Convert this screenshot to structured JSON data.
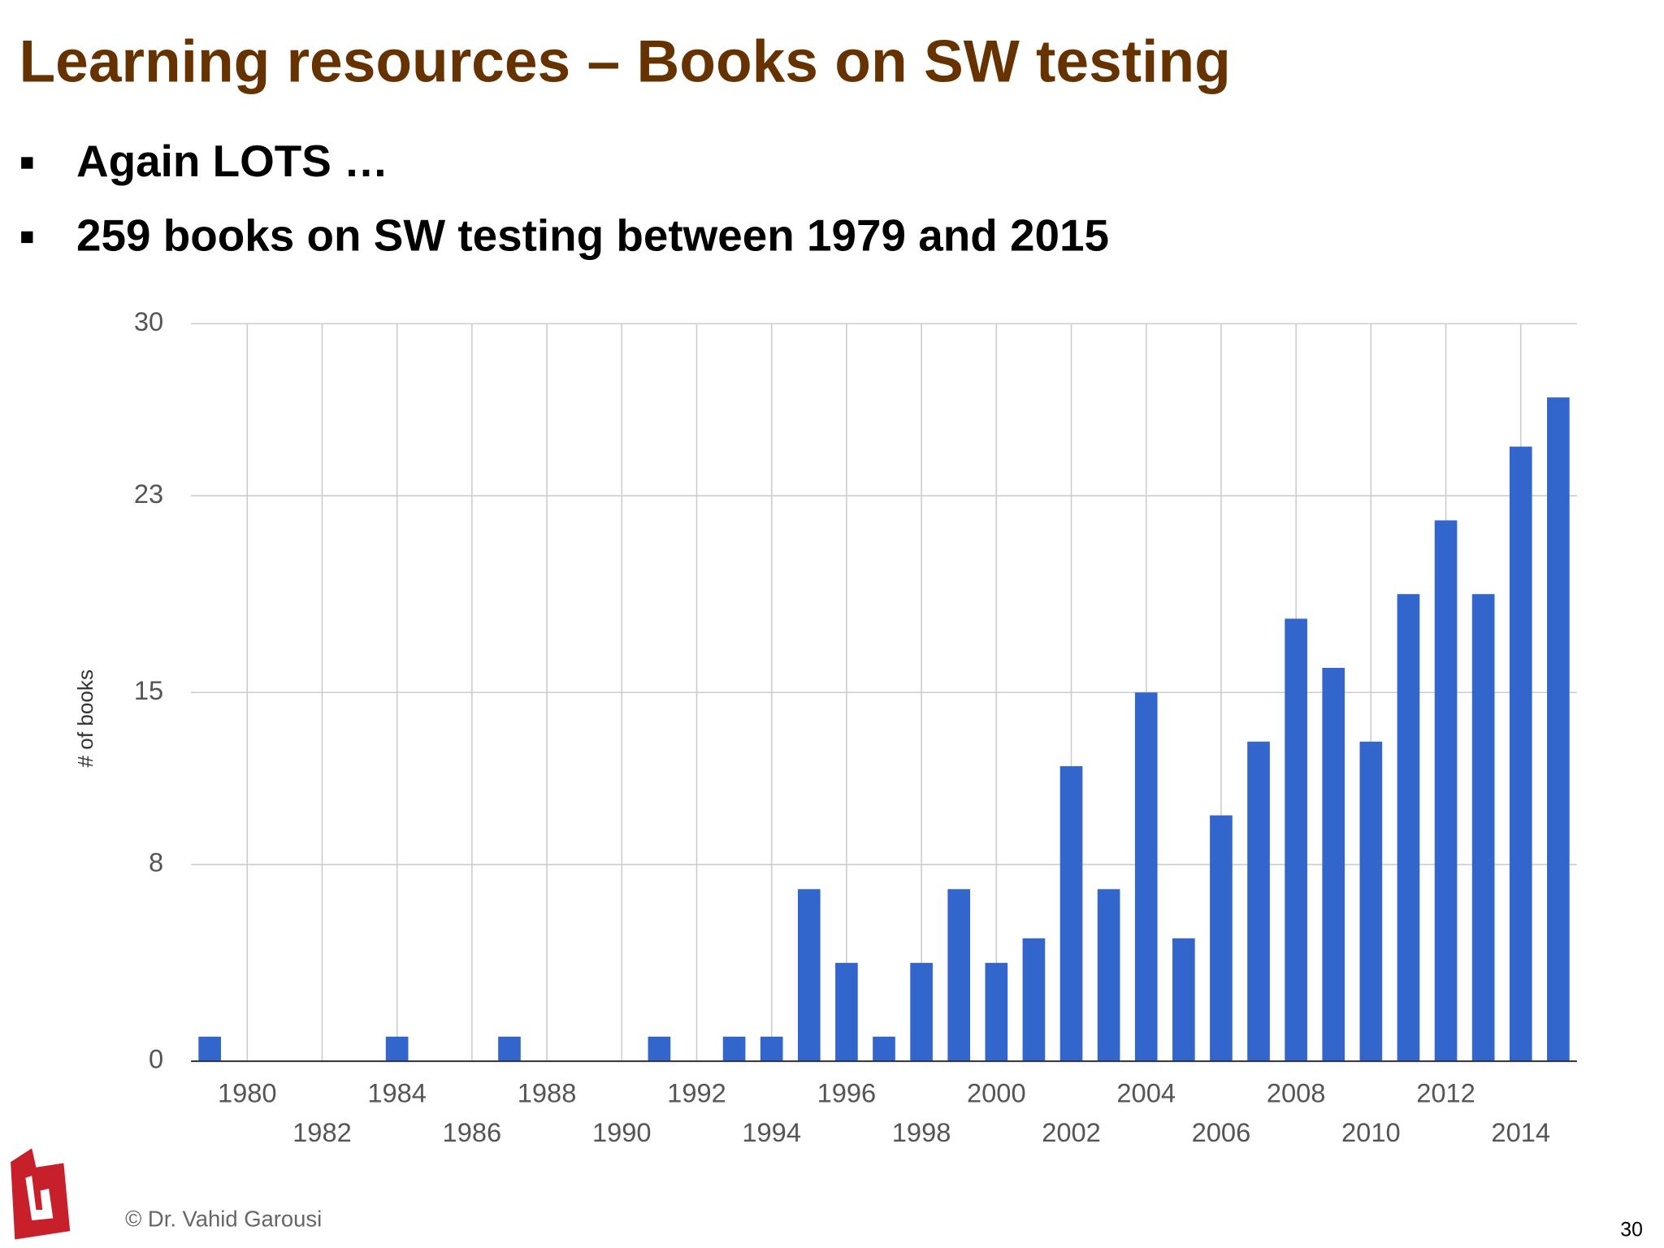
{
  "slide": {
    "title": "Learning resources – Books on SW testing",
    "bullets": [
      "Again LOTS …",
      "259 books on SW testing between 1979 and 2015"
    ],
    "footer": "© Dr. Vahid Garousi",
    "page_number": "30"
  },
  "chart_data": {
    "type": "bar",
    "y_label": "# of books",
    "x": [
      1979,
      1980,
      1981,
      1982,
      1983,
      1984,
      1985,
      1986,
      1987,
      1988,
      1989,
      1990,
      1991,
      1992,
      1993,
      1994,
      1995,
      1996,
      1997,
      1998,
      1999,
      2000,
      2001,
      2002,
      2003,
      2004,
      2005,
      2006,
      2007,
      2008,
      2009,
      2010,
      2011,
      2012,
      2013,
      2014,
      2015
    ],
    "values": [
      1,
      0,
      0,
      0,
      0,
      1,
      0,
      0,
      1,
      0,
      0,
      0,
      1,
      0,
      1,
      1,
      7,
      4,
      1,
      4,
      7,
      4,
      5,
      12,
      7,
      15,
      5,
      10,
      13,
      18,
      16,
      13,
      19,
      22,
      19,
      25,
      27
    ],
    "color": "#3366cc",
    "xlim": [
      1978.5,
      2015.5
    ],
    "xticks": [
      1980,
      1982,
      1984,
      1986,
      1988,
      1990,
      1992,
      1994,
      1996,
      1998,
      2000,
      2002,
      2004,
      2006,
      2008,
      2010,
      2012,
      2014
    ],
    "ylim": [
      0,
      30
    ],
    "yticks": [
      0,
      8,
      15,
      23,
      30
    ],
    "grid": true
  }
}
